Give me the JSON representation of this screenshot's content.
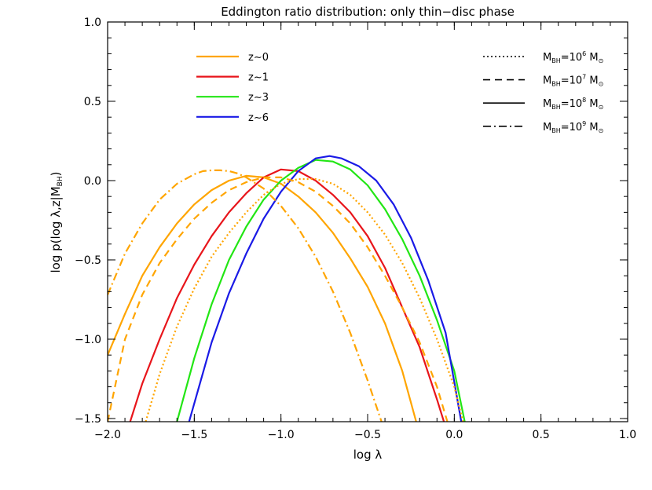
{
  "chart_data": {
    "type": "line",
    "title": "Eddington ratio distribution: only thin−disc phase",
    "xlabel": "log λ",
    "ylabel": "log p(log λ,z|M",
    "ylabel_sub": "BH",
    "ylabel_close": ")",
    "xlim": [
      -2.0,
      1.0
    ],
    "ylim": [
      -1.52,
      1.0
    ],
    "x_ticks": [
      -2.0,
      -1.5,
      -1.0,
      -0.5,
      0.0,
      0.5,
      1.0
    ],
    "x_tick_labels": [
      "−2.0",
      "−1.5",
      "−1.0",
      "−0.5",
      "0.0",
      "0.5",
      "1.0"
    ],
    "y_ticks": [
      -1.5,
      -1.0,
      -0.5,
      0.0,
      0.5,
      1.0
    ],
    "y_tick_labels": [
      "−1.5",
      "−1.0",
      "−0.5",
      "0.0",
      "0.5",
      "1.0"
    ],
    "grid": false,
    "legend_redshift": {
      "placement": "top-left",
      "entries": [
        {
          "label": "z∼0",
          "color": "#FFA500"
        },
        {
          "label": "z∼1",
          "color": "#E8151B"
        },
        {
          "label": "z∼3",
          "color": "#22E614"
        },
        {
          "label": "z∼6",
          "color": "#1A1AE6"
        }
      ]
    },
    "legend_mass": {
      "placement": "top-right",
      "entries": [
        {
          "prefix": "M",
          "sub": "BH",
          "mid": "=10",
          "exp": "6",
          "unit": " M",
          "sun": "⊙",
          "dash": "dotted"
        },
        {
          "prefix": "M",
          "sub": "BH",
          "mid": "=10",
          "exp": "7",
          "unit": " M",
          "sun": "⊙",
          "dash": "dashed"
        },
        {
          "prefix": "M",
          "sub": "BH",
          "mid": "=10",
          "exp": "8",
          "unit": " M",
          "sun": "⊙",
          "dash": "solid"
        },
        {
          "prefix": "M",
          "sub": "BH",
          "mid": "=10",
          "exp": "9",
          "unit": " M",
          "sun": "⊙",
          "dash": "dashdot"
        }
      ]
    },
    "series": [
      {
        "color": "#FFA500",
        "dash": "solid",
        "x": [
          -2.0,
          -1.9,
          -1.8,
          -1.7,
          -1.6,
          -1.5,
          -1.4,
          -1.3,
          -1.2,
          -1.1,
          -1.0,
          -0.9,
          -0.8,
          -0.7,
          -0.6,
          -0.5,
          -0.4,
          -0.3,
          -0.22
        ],
        "y": [
          -1.1,
          -0.84,
          -0.6,
          -0.42,
          -0.27,
          -0.15,
          -0.06,
          0.0,
          0.03,
          0.02,
          -0.02,
          -0.1,
          -0.2,
          -0.33,
          -0.49,
          -0.67,
          -0.9,
          -1.2,
          -1.52
        ]
      },
      {
        "color": "#E8151B",
        "dash": "solid",
        "x": [
          -1.87,
          -1.8,
          -1.7,
          -1.6,
          -1.5,
          -1.4,
          -1.3,
          -1.2,
          -1.1,
          -1.0,
          -0.9,
          -0.8,
          -0.7,
          -0.6,
          -0.5,
          -0.4,
          -0.3,
          -0.2,
          -0.1,
          -0.06
        ],
        "y": [
          -1.52,
          -1.28,
          -1.0,
          -0.74,
          -0.53,
          -0.35,
          -0.2,
          -0.08,
          0.02,
          0.07,
          0.06,
          0.0,
          -0.09,
          -0.2,
          -0.35,
          -0.55,
          -0.8,
          -1.05,
          -1.38,
          -1.52
        ]
      },
      {
        "color": "#22E614",
        "dash": "solid",
        "x": [
          -1.6,
          -1.5,
          -1.4,
          -1.3,
          -1.2,
          -1.1,
          -1.0,
          -0.9,
          -0.8,
          -0.7,
          -0.6,
          -0.5,
          -0.4,
          -0.3,
          -0.2,
          -0.1,
          0.0,
          0.06
        ],
        "y": [
          -1.52,
          -1.12,
          -0.78,
          -0.5,
          -0.29,
          -0.12,
          0.0,
          0.08,
          0.13,
          0.12,
          0.07,
          -0.03,
          -0.18,
          -0.37,
          -0.6,
          -0.88,
          -1.2,
          -1.52
        ]
      },
      {
        "color": "#1A1AE6",
        "dash": "solid",
        "x": [
          -1.53,
          -1.4,
          -1.3,
          -1.2,
          -1.1,
          -1.0,
          -0.9,
          -0.8,
          -0.72,
          -0.65,
          -0.55,
          -0.45,
          -0.35,
          -0.25,
          -0.15,
          -0.05,
          0.04
        ],
        "y": [
          -1.52,
          -1.02,
          -0.71,
          -0.46,
          -0.24,
          -0.07,
          0.06,
          0.14,
          0.155,
          0.14,
          0.09,
          0.0,
          -0.15,
          -0.36,
          -0.63,
          -0.96,
          -1.52
        ]
      },
      {
        "color": "#FFA500",
        "dash": "dotted",
        "x": [
          -1.78,
          -1.7,
          -1.6,
          -1.5,
          -1.4,
          -1.3,
          -1.2,
          -1.1,
          -1.0,
          -0.9,
          -0.8,
          -0.7,
          -0.6,
          -0.5,
          -0.4,
          -0.3,
          -0.2,
          -0.1,
          0.0,
          0.05
        ],
        "y": [
          -1.52,
          -1.22,
          -0.92,
          -0.68,
          -0.48,
          -0.33,
          -0.2,
          -0.09,
          -0.02,
          0.01,
          0.01,
          -0.02,
          -0.09,
          -0.2,
          -0.34,
          -0.52,
          -0.74,
          -1.0,
          -1.3,
          -1.52
        ]
      },
      {
        "color": "#FFA500",
        "dash": "dashed",
        "x": [
          -2.0,
          -1.9,
          -1.8,
          -1.7,
          -1.6,
          -1.5,
          -1.4,
          -1.3,
          -1.2,
          -1.1,
          -1.0,
          -0.9,
          -0.8,
          -0.7,
          -0.6,
          -0.5,
          -0.4,
          -0.3,
          -0.2,
          -0.1,
          -0.04
        ],
        "y": [
          -1.52,
          -1.0,
          -0.72,
          -0.52,
          -0.37,
          -0.24,
          -0.14,
          -0.06,
          -0.01,
          0.02,
          0.02,
          -0.01,
          -0.07,
          -0.16,
          -0.27,
          -0.42,
          -0.6,
          -0.8,
          -1.02,
          -1.3,
          -1.52
        ]
      },
      {
        "color": "#FFA500",
        "dash": "dashdot",
        "x": [
          -2.0,
          -1.9,
          -1.8,
          -1.7,
          -1.6,
          -1.5,
          -1.45,
          -1.4,
          -1.35,
          -1.3,
          -1.25,
          -1.2,
          -1.1,
          -1.0,
          -0.9,
          -0.8,
          -0.7,
          -0.6,
          -0.5,
          -0.42
        ],
        "y": [
          -0.72,
          -0.46,
          -0.27,
          -0.12,
          -0.02,
          0.04,
          0.06,
          0.065,
          0.065,
          0.06,
          0.045,
          0.02,
          -0.05,
          -0.16,
          -0.3,
          -0.48,
          -0.7,
          -0.96,
          -1.26,
          -1.52
        ]
      }
    ]
  }
}
